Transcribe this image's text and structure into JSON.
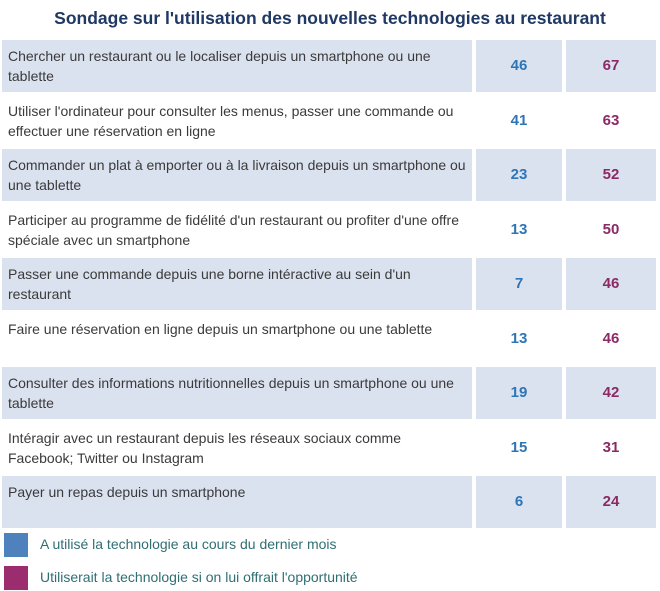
{
  "chart_data": {
    "type": "table",
    "title": "Sondage sur l'utilisation des nouvelles technologies au restaurant",
    "categories": [
      "Chercher un restaurant ou le localiser depuis un smartphone ou une tablette",
      "Utiliser l'ordinateur pour consulter les menus, passer une commande ou effectuer une réservation en ligne",
      "Commander un plat à emporter ou à la livraison depuis un smartphone ou une tablette",
      "Participer au programme de fidélité d'un restaurant ou profiter d'une offre spéciale avec un smartphone",
      "Passer une commande depuis une borne intéractive au sein d'un restaurant",
      "Faire une réservation en ligne depuis un smartphone ou une tablette",
      "Consulter des informations nutritionnelles depuis un smartphone ou une tablette",
      "Intéragir avec un restaurant depuis les réseaux sociaux comme Facebook; Twitter ou Instagram",
      "Payer un repas depuis un smartphone"
    ],
    "series": [
      {
        "name": "A utilisé la technologie au cours du dernier mois",
        "color": "#4f81bd",
        "text_color": "#2e75b6",
        "values": [
          46,
          41,
          23,
          13,
          7,
          13,
          19,
          15,
          6
        ]
      },
      {
        "name": "Utiliserait la technologie si on lui offrait l'opportunité",
        "color": "#9b2d6e",
        "text_color": "#8b2a64",
        "values": [
          67,
          63,
          52,
          50,
          46,
          46,
          42,
          31,
          24
        ]
      }
    ],
    "shaded_rows": [
      true,
      false,
      true,
      false,
      true,
      false,
      true,
      false,
      true
    ]
  }
}
